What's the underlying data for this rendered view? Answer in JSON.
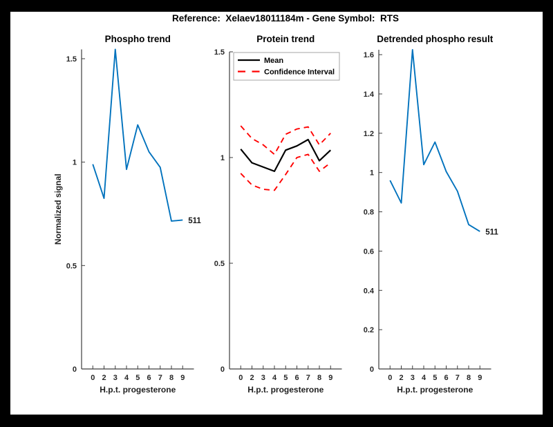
{
  "figure": {
    "title": "Reference:  Xelaev18011184m - Gene Symbol:  RTS",
    "frame_color": "#000000",
    "canvas_color": "#ffffff",
    "axis_color": "#3c3c3c",
    "text_color": "#262626",
    "accent_blue": "#0072BD",
    "accent_red": "#ff0000"
  },
  "chart_data": [
    {
      "type": "line",
      "title": "Phospho trend",
      "xlabel": "H.p.t. progesterone",
      "ylabel": "Normalized signal",
      "x_tick_labels": [
        "0",
        "2",
        "3",
        "4",
        "5",
        "6",
        "7",
        "8",
        "9"
      ],
      "y_ticks": [
        0,
        0.5,
        1,
        1.5
      ],
      "y_tick_labels": [
        "0",
        "0.5",
        "1",
        "1.5"
      ],
      "ylim": [
        0,
        1.545
      ],
      "grid": false,
      "legend": null,
      "series": [
        {
          "name": "phospho-trend",
          "color": "#0072BD",
          "style": "solid",
          "width": 1.9,
          "values": [
            0.99,
            0.825,
            1.545,
            0.965,
            1.18,
            1.05,
            0.975,
            0.715,
            0.72
          ],
          "end_label": "511"
        }
      ]
    },
    {
      "type": "line",
      "title": "Protein trend",
      "xlabel": "H.p.t. progesterone",
      "ylabel": "",
      "x_tick_labels": [
        "0",
        "2",
        "3",
        "4",
        "5",
        "6",
        "7",
        "8",
        "9"
      ],
      "y_ticks": [
        0,
        0.5,
        1,
        1.5
      ],
      "y_tick_labels": [
        "0",
        "0.5",
        "1",
        "1.5"
      ],
      "ylim": [
        0,
        1.5
      ],
      "grid": false,
      "legend": {
        "position": "northwest",
        "entries": [
          {
            "label": "Mean",
            "color": "#000000",
            "style": "solid"
          },
          {
            "label": "Confidence Interval",
            "color": "#ff0000",
            "style": "dashed"
          }
        ]
      },
      "series": [
        {
          "name": "mean",
          "color": "#000000",
          "style": "solid",
          "width": 2.2,
          "values": [
            1.04,
            0.975,
            0.955,
            0.935,
            1.035,
            1.055,
            1.085,
            0.985,
            1.035
          ]
        },
        {
          "name": "ci-upper",
          "color": "#ff0000",
          "style": "dashed",
          "width": 1.9,
          "values": [
            1.15,
            1.09,
            1.06,
            1.015,
            1.11,
            1.135,
            1.145,
            1.06,
            1.115
          ]
        },
        {
          "name": "ci-lower",
          "color": "#ff0000",
          "style": "dashed",
          "width": 1.9,
          "values": [
            0.925,
            0.87,
            0.85,
            0.845,
            0.92,
            1.0,
            1.015,
            0.935,
            0.975
          ]
        }
      ]
    },
    {
      "type": "line",
      "title": "Detrended phospho result",
      "xlabel": "H.p.t. progesterone",
      "ylabel": "",
      "x_tick_labels": [
        "0",
        "2",
        "3",
        "4",
        "5",
        "6",
        "7",
        "8",
        "9"
      ],
      "y_ticks": [
        0,
        0.2,
        0.4,
        0.6,
        0.8,
        1,
        1.2,
        1.4,
        1.6
      ],
      "y_tick_labels": [
        "0",
        "0.2",
        "0.4",
        "0.6",
        "0.8",
        "1",
        "1.2",
        "1.4",
        "1.6"
      ],
      "ylim": [
        0,
        1.625
      ],
      "grid": false,
      "legend": null,
      "series": [
        {
          "name": "detrended-phospho",
          "color": "#0072BD",
          "style": "solid",
          "width": 1.9,
          "values": [
            0.96,
            0.845,
            1.625,
            1.04,
            1.155,
            1.005,
            0.905,
            0.735,
            0.7
          ],
          "end_label": "511"
        }
      ]
    }
  ]
}
